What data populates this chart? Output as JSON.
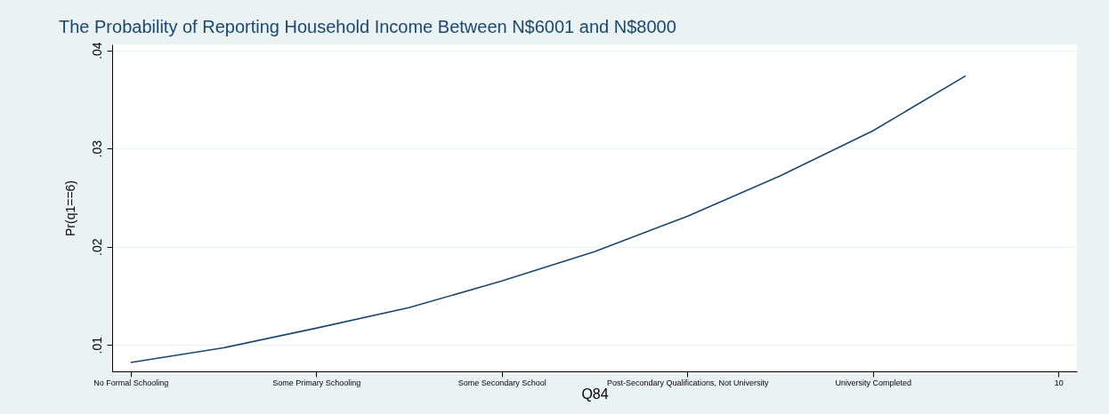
{
  "chart_data": {
    "type": "line",
    "title": "The Probability of Reporting Household Income Between N$6001 and N$8000",
    "xlabel": "Q84",
    "ylabel": "Pr(q1==6)",
    "categories": [
      "No Formal Schooling",
      null,
      "Some Primary Schooling",
      null,
      "Some Secondary School",
      null,
      "Post-Secondary Qualifications, Not University",
      null,
      "University Completed",
      null,
      "10"
    ],
    "series": [
      {
        "color": "#1a476f",
        "values": [
          0.0082,
          0.0097,
          0.0117,
          0.0138,
          0.0165,
          0.0195,
          0.0231,
          0.0272,
          0.0318,
          0.0374,
          null
        ]
      }
    ],
    "ylim": [
      0.0073,
      0.0406
    ],
    "yticks": [
      {
        "value": 0.01,
        "label": ".01"
      },
      {
        "value": 0.02,
        "label": ".02"
      },
      {
        "value": 0.03,
        "label": ".03"
      },
      {
        "value": 0.04,
        "label": ".04"
      }
    ],
    "grid": "y",
    "marker": "none",
    "line_style": "solid"
  }
}
